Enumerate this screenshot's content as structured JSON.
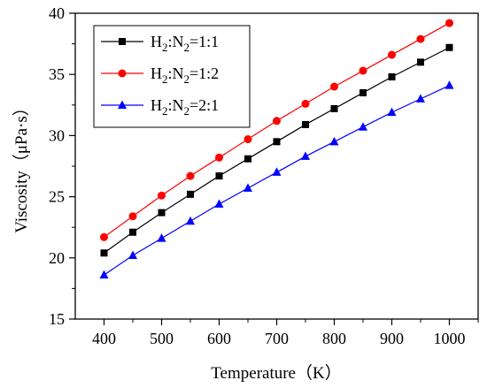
{
  "chart_data": {
    "type": "line",
    "xlabel": "Temperature（K）",
    "ylabel": "Viscosity（μPa·s）",
    "xlim": [
      350,
      1050
    ],
    "ylim": [
      15,
      40
    ],
    "xticks": [
      400,
      500,
      600,
      700,
      800,
      900,
      1000
    ],
    "yticks": [
      15,
      20,
      25,
      30,
      35,
      40
    ],
    "x": [
      400,
      450,
      500,
      550,
      600,
      650,
      700,
      750,
      800,
      850,
      900,
      950,
      1000
    ],
    "legend_position": "top-left",
    "grid": false,
    "series": [
      {
        "name": "H2:N2=1:1",
        "legend": {
          "a": "H",
          "a_sub": "2",
          "b": ":N",
          "b_sub": "2",
          "c": "=1:1"
        },
        "color": "#000000",
        "marker": "square",
        "values": [
          20.4,
          22.1,
          23.7,
          25.2,
          26.7,
          28.1,
          29.5,
          30.9,
          32.2,
          33.5,
          34.8,
          36.0,
          37.2
        ]
      },
      {
        "name": "H2:N2=1:2",
        "legend": {
          "a": "H",
          "a_sub": "2",
          "b": ":N",
          "b_sub": "2",
          "c": "=1:2"
        },
        "color": "#ff0000",
        "marker": "circle",
        "values": [
          21.7,
          23.4,
          25.1,
          26.7,
          28.2,
          29.7,
          31.2,
          32.6,
          34.0,
          35.3,
          36.6,
          37.9,
          39.2
        ]
      },
      {
        "name": "H2:N2=2:1",
        "legend": {
          "a": "H",
          "a_sub": "2",
          "b": ":N",
          "b_sub": "2",
          "c": "=2:1"
        },
        "color": "#0000ff",
        "marker": "triangle",
        "values": [
          18.6,
          20.2,
          21.6,
          23.0,
          24.4,
          25.7,
          27.0,
          28.3,
          29.5,
          30.7,
          31.9,
          33.0,
          34.1
        ]
      }
    ]
  }
}
